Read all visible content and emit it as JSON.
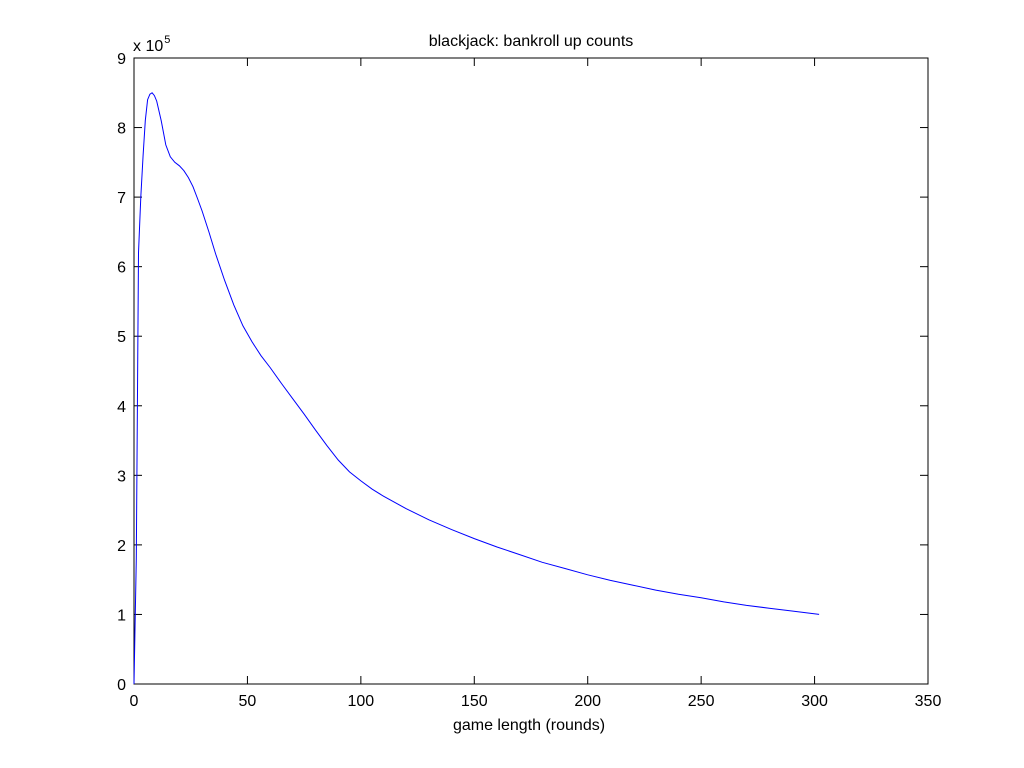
{
  "chart_data": {
    "type": "line",
    "title": "blackjack: bankroll up counts",
    "xlabel": "game length (rounds)",
    "ylabel": "",
    "xlim": [
      0,
      350
    ],
    "ylim": [
      0,
      900000
    ],
    "x_ticks": [
      0,
      50,
      100,
      150,
      200,
      250,
      300,
      350
    ],
    "y_ticks": [
      0,
      100000,
      200000,
      300000,
      400000,
      500000,
      600000,
      700000,
      800000,
      900000
    ],
    "x_tick_labels": [
      "0",
      "50",
      "100",
      "150",
      "200",
      "250",
      "300",
      "350"
    ],
    "y_tick_labels": [
      "0",
      "1",
      "2",
      "3",
      "4",
      "5",
      "6",
      "7",
      "8",
      "9"
    ],
    "y_multiplier_base": "x 10",
    "y_multiplier_exponent": "5",
    "grid": false,
    "series": [
      {
        "color": "#0000ff",
        "x": [
          0,
          1,
          2,
          3,
          4,
          5,
          6,
          7,
          8,
          9,
          10,
          12,
          14,
          16,
          18,
          20,
          22,
          24,
          26,
          28,
          30,
          33,
          36,
          40,
          44,
          48,
          52,
          56,
          60,
          65,
          70,
          75,
          80,
          85,
          90,
          95,
          100,
          105,
          110,
          120,
          130,
          140,
          150,
          160,
          170,
          180,
          190,
          200,
          210,
          220,
          230,
          240,
          250,
          260,
          270,
          280,
          290,
          302
        ],
        "y": [
          0,
          180000,
          620000,
          700000,
          760000,
          810000,
          840000,
          848000,
          850000,
          846000,
          838000,
          810000,
          775000,
          758000,
          750000,
          745000,
          738000,
          728000,
          715000,
          698000,
          680000,
          650000,
          618000,
          580000,
          545000,
          515000,
          492000,
          472000,
          455000,
          432000,
          410000,
          388000,
          365000,
          343000,
          322000,
          305000,
          292000,
          280000,
          270000,
          252000,
          236000,
          222000,
          209000,
          197000,
          186000,
          175000,
          166000,
          157000,
          149000,
          142000,
          135000,
          129000,
          124000,
          118000,
          113000,
          109000,
          105000,
          100000
        ]
      }
    ]
  }
}
